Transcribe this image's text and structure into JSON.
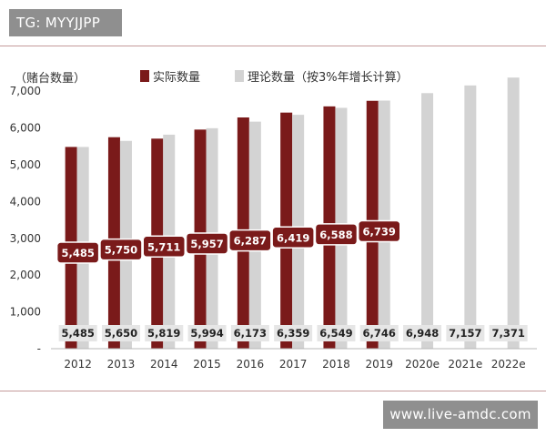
{
  "watermark": {
    "tg_text": "TG: MYYJJPP",
    "website_text": "www.live-amdc.com"
  },
  "colors": {
    "actual": "#7a1a1a",
    "theoretical": "#d3d3d3",
    "label_theory_bg": "#e6e6e6",
    "rule": "#c49a9a"
  },
  "chart_data": {
    "type": "bar",
    "ylabel": "（赌台数量）",
    "categories": [
      "2012",
      "2013",
      "2014",
      "2015",
      "2016",
      "2017",
      "2018",
      "2019",
      "2020e",
      "2021e",
      "2022e"
    ],
    "series": [
      {
        "name": "实际数量",
        "values": [
          5485,
          5750,
          5711,
          5957,
          6287,
          6419,
          6588,
          6739,
          null,
          null,
          null
        ],
        "labels": [
          "5,485",
          "5,750",
          "5,711",
          "5,957",
          "6,287",
          "6,419",
          "6,588",
          "6,739",
          null,
          null,
          null
        ]
      },
      {
        "name": "理论数量（按3%年增长计算）",
        "values": [
          5485,
          5650,
          5819,
          5994,
          6173,
          6359,
          6549,
          6746,
          6948,
          7157,
          7371
        ],
        "labels": [
          "5,485",
          "5,650",
          "5,819",
          "5,994",
          "6,173",
          "6,359",
          "6,549",
          "6,746",
          "6,948",
          "7,157",
          "7,371"
        ]
      }
    ],
    "yticks": [
      "-",
      "1,000",
      "2,000",
      "3,000",
      "4,000",
      "5,000",
      "6,000",
      "7,000"
    ],
    "ylim": [
      0,
      7500
    ],
    "legend_position": "top",
    "grid": false
  }
}
